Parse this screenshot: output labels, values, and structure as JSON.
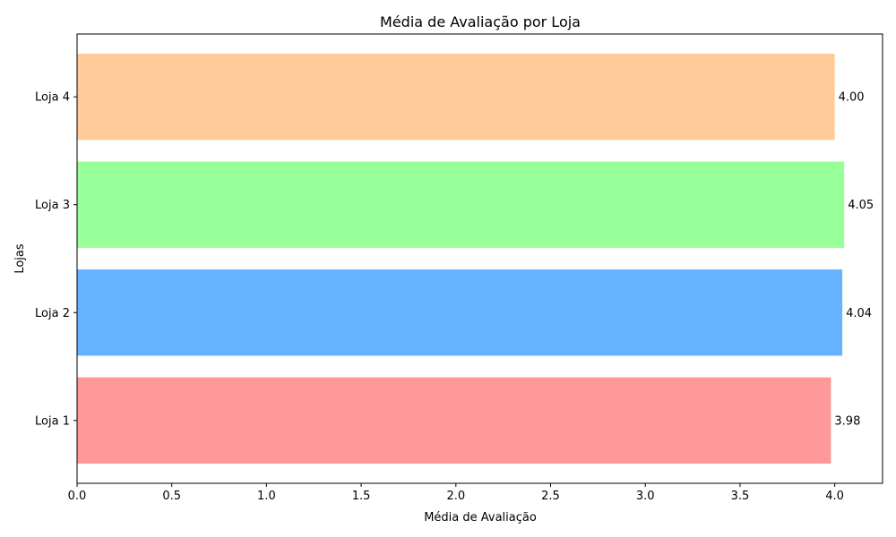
{
  "chart_data": {
    "type": "bar",
    "orientation": "horizontal",
    "title": "Média de Avaliação por Loja",
    "xlabel": "Média de Avaliação",
    "ylabel": "Lojas",
    "categories": [
      "Loja 1",
      "Loja 2",
      "Loja 3",
      "Loja 4"
    ],
    "values": [
      3.98,
      4.04,
      4.05,
      4.0
    ],
    "value_labels": [
      "3.98",
      "4.04",
      "4.05",
      "4.00"
    ],
    "colors": [
      "#ff9999",
      "#66b3ff",
      "#99ff99",
      "#ffcc99"
    ],
    "xlim": [
      0,
      4.2525
    ],
    "xticks": [
      0.0,
      0.5,
      1.0,
      1.5,
      2.0,
      2.5,
      3.0,
      3.5,
      4.0
    ],
    "xtick_labels": [
      "0.0",
      "0.5",
      "1.0",
      "1.5",
      "2.0",
      "2.5",
      "3.0",
      "3.5",
      "4.0"
    ],
    "grid": false,
    "legend": "none"
  }
}
